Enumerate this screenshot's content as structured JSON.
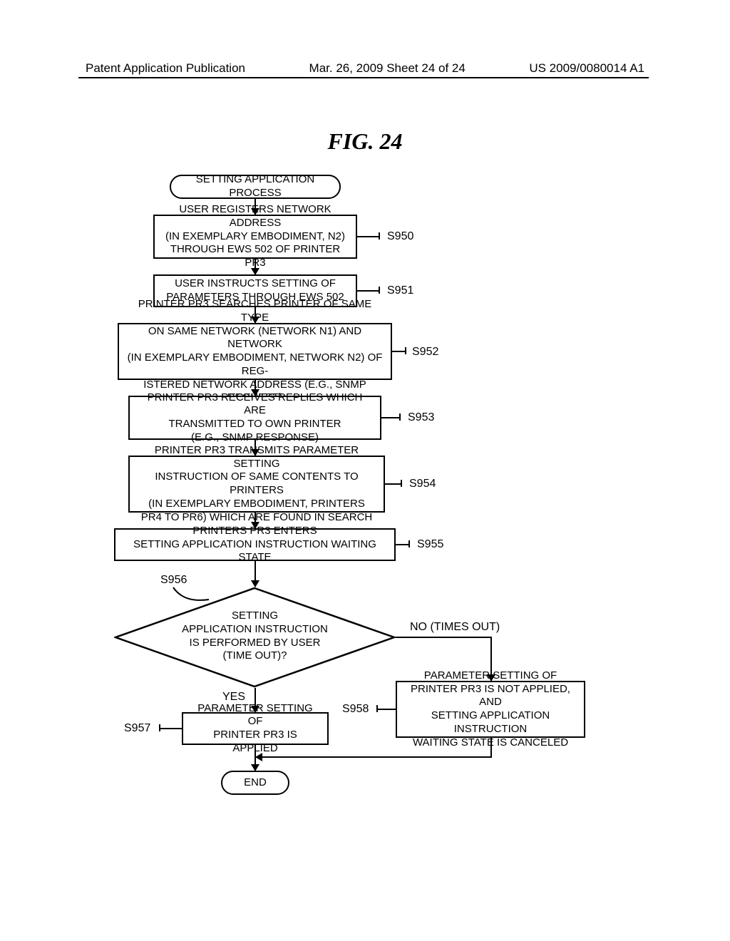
{
  "header": {
    "left": "Patent Application Publication",
    "center": "Mar. 26, 2009  Sheet 24 of 24",
    "right": "US 2009/0080014 A1"
  },
  "figure_title": "FIG. 24",
  "flowchart": {
    "type": "flowchart",
    "background_color": "#ffffff",
    "line_color": "#000000",
    "line_width": 2.5,
    "font_family": "Arial",
    "font_size": 15,
    "nodes": {
      "start": {
        "shape": "terminal",
        "text": "SETTING APPLICATION PROCESS"
      },
      "s950": {
        "shape": "process",
        "text": "USER REGISTERS NETWORK ADDRESS\n(IN EXEMPLARY EMBODIMENT, N2)\nTHROUGH EWS 502 OF PRINTER PR3",
        "label": "S950"
      },
      "s951": {
        "shape": "process",
        "text": "USER INSTRUCTS SETTING OF\nPARAMETERS THROUGH EWS 502",
        "label": "S951"
      },
      "s952": {
        "shape": "process",
        "text": "PRINTER PR3 SEARCHES PRINTER OF SAME TYPE\nON SAME NETWORK (NETWORK N1) AND NETWORK\n(IN EXEMPLARY EMBODIMENT, NETWORK N2) OF REG-\nISTERED NETWORK ADDRESS (E.G., SNMP REQUEST)",
        "label": "S952"
      },
      "s953": {
        "shape": "process",
        "text": "PRINTER PR3 RECEIVES REPLIES WHICH ARE\nTRANSMITTED TO OWN PRINTER\n(E.G., SNMP RESPONSE)",
        "label": "S953"
      },
      "s954": {
        "shape": "process",
        "text": "PRINTER PR3 TRANSMITS PARAMETER SETTING\nINSTRUCTION OF SAME CONTENTS TO PRINTERS\n(IN EXEMPLARY EMBODIMENT, PRINTERS\nPR4 TO PR6) WHICH ARE FOUND IN SEARCH",
        "label": "S954"
      },
      "s955": {
        "shape": "process",
        "text": "PRINTERS PR3 ENTERS\nSETTING APPLICATION INSTRUCTION WAITING STATE",
        "label": "S955"
      },
      "s956": {
        "shape": "decision",
        "text": "SETTING\nAPPLICATION INSTRUCTION\nIS PERFORMED BY USER\n(TIME OUT)?",
        "label": "S956"
      },
      "s957": {
        "shape": "process",
        "text": "PARAMETER SETTING OF\nPRINTER PR3 IS APPLIED",
        "label": "S957"
      },
      "s958": {
        "shape": "process",
        "text": "PARAMETER SETTING OF\nPRINTER PR3 IS NOT APPLIED, AND\nSETTING APPLICATION INSTRUCTION\nWAITING STATE IS CANCELED",
        "label": "S958"
      },
      "end": {
        "shape": "terminal",
        "text": "END"
      }
    },
    "edges": [
      {
        "from": "start",
        "to": "s950"
      },
      {
        "from": "s950",
        "to": "s951"
      },
      {
        "from": "s951",
        "to": "s952"
      },
      {
        "from": "s952",
        "to": "s953"
      },
      {
        "from": "s953",
        "to": "s954"
      },
      {
        "from": "s954",
        "to": "s955"
      },
      {
        "from": "s955",
        "to": "s956"
      },
      {
        "from": "s956",
        "to": "s957",
        "label": "YES"
      },
      {
        "from": "s956",
        "to": "s958",
        "label": "NO (TIMES OUT)"
      },
      {
        "from": "s957",
        "to": "end"
      },
      {
        "from": "s958",
        "to": "end"
      }
    ]
  }
}
